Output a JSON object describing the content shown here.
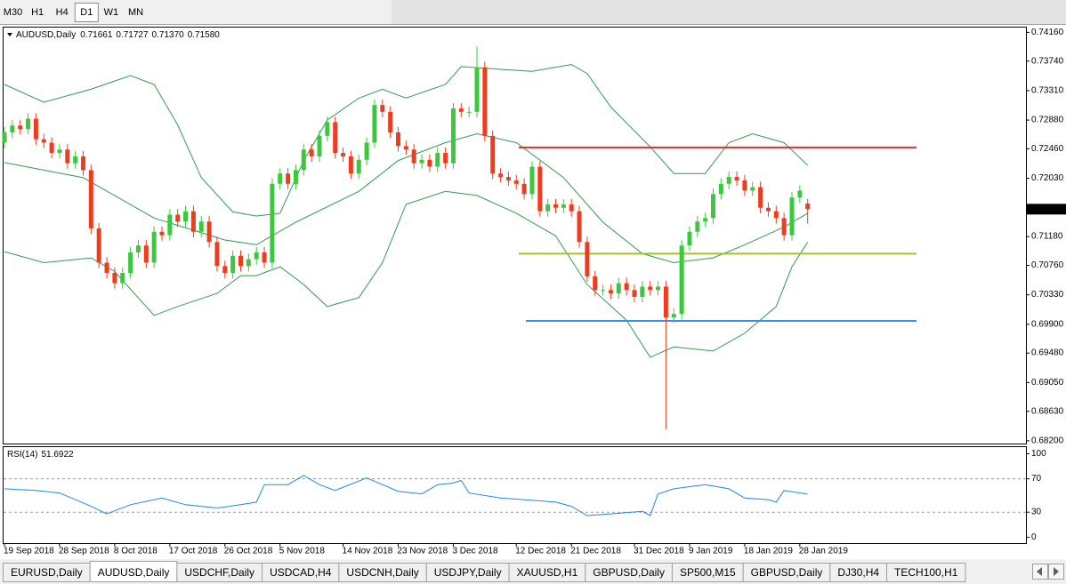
{
  "toolbar": {
    "timeframes": [
      "M30",
      "H1",
      "H4",
      "D1",
      "W1",
      "MN"
    ],
    "active": 3
  },
  "chart_data": [
    {
      "type": "candlestick",
      "title": "AUDUSD,Daily",
      "last_bar_labels": {
        "open": "0.71661",
        "high": "0.71727",
        "low": "0.71370",
        "close": "0.71580"
      },
      "categories": [
        "19 Sep 2018",
        null,
        null,
        null,
        null,
        null,
        null,
        "28 Sep 2018",
        null,
        null,
        null,
        null,
        null,
        null,
        "8 Oct 2018",
        null,
        null,
        null,
        null,
        null,
        null,
        "17 Oct 2018",
        null,
        null,
        null,
        null,
        null,
        null,
        "26 Oct 2018",
        null,
        null,
        null,
        null,
        null,
        null,
        "5 Nov 2018",
        null,
        null,
        null,
        null,
        null,
        null,
        null,
        "14 Nov 2018",
        null,
        null,
        null,
        null,
        null,
        null,
        "23 Nov 2018",
        null,
        null,
        null,
        null,
        null,
        null,
        "3 Dec 2018",
        null,
        null,
        null,
        null,
        null,
        null,
        null,
        "12 Dec 2018",
        null,
        null,
        null,
        null,
        null,
        null,
        "21 Dec 2018",
        null,
        null,
        null,
        null,
        null,
        null,
        null,
        "31 Dec 2018",
        null,
        null,
        null,
        null,
        null,
        null,
        "9 Jan 2019",
        null,
        null,
        null,
        null,
        null,
        null,
        "18 Jan 2019",
        null,
        null,
        null,
        null,
        null,
        null,
        "28 Jan 2019",
        null
      ],
      "open": [
        0.7255,
        0.727,
        0.728,
        0.7275,
        0.729,
        0.726,
        0.7255,
        0.724,
        0.7245,
        0.7225,
        0.7235,
        0.7215,
        0.713,
        0.708,
        0.7065,
        0.705,
        0.7065,
        0.7095,
        0.7105,
        0.708,
        0.7125,
        0.712,
        0.715,
        0.714,
        0.7155,
        0.7125,
        0.714,
        0.711,
        0.7075,
        0.7065,
        0.709,
        0.7075,
        0.7085,
        0.7095,
        0.708,
        0.7195,
        0.721,
        0.7195,
        0.7215,
        0.7245,
        0.7235,
        0.7265,
        0.7285,
        0.724,
        0.7235,
        0.721,
        0.723,
        0.7255,
        0.731,
        0.73,
        0.727,
        0.725,
        0.7245,
        0.7225,
        0.723,
        0.722,
        0.724,
        0.7225,
        0.7305,
        0.73,
        0.73,
        0.7365,
        0.7265,
        0.721,
        0.7205,
        0.72,
        0.7195,
        0.718,
        0.722,
        0.7155,
        0.7165,
        0.716,
        0.7165,
        0.7155,
        0.711,
        0.706,
        0.704,
        0.704,
        0.7035,
        0.705,
        0.704,
        0.703,
        0.7045,
        0.704,
        0.7045,
        0.7,
        0.7005,
        0.7105,
        0.7125,
        0.714,
        0.7145,
        0.718,
        0.7195,
        0.7205,
        0.72,
        0.7185,
        0.719,
        0.716,
        0.7155,
        0.7145,
        0.712,
        0.7175,
        0.71661
      ],
      "high": [
        0.7278,
        0.7288,
        0.7288,
        0.7298,
        0.7298,
        0.7268,
        0.7263,
        0.7253,
        0.7253,
        0.7243,
        0.7243,
        0.7223,
        0.7138,
        0.7088,
        0.7073,
        0.7073,
        0.7103,
        0.7113,
        0.7113,
        0.7133,
        0.7133,
        0.7158,
        0.7158,
        0.7163,
        0.7163,
        0.7148,
        0.7148,
        0.7118,
        0.7083,
        0.7098,
        0.7098,
        0.7093,
        0.7103,
        0.7103,
        0.7203,
        0.7218,
        0.7218,
        0.7223,
        0.7253,
        0.7253,
        0.7273,
        0.7293,
        0.7293,
        0.7248,
        0.7243,
        0.7238,
        0.7263,
        0.7318,
        0.7318,
        0.7308,
        0.7278,
        0.7258,
        0.7253,
        0.7238,
        0.7238,
        0.7248,
        0.7248,
        0.7313,
        0.7313,
        0.7308,
        0.7395,
        0.7373,
        0.7273,
        0.7218,
        0.7213,
        0.7208,
        0.7203,
        0.7228,
        0.7228,
        0.7173,
        0.7173,
        0.7173,
        0.7173,
        0.7163,
        0.7118,
        0.7068,
        0.7048,
        0.7048,
        0.7058,
        0.7058,
        0.7048,
        0.7053,
        0.7053,
        0.7053,
        0.7053,
        0.7013,
        0.7113,
        0.7133,
        0.7148,
        0.7153,
        0.7188,
        0.7203,
        0.7213,
        0.7213,
        0.7208,
        0.7198,
        0.7198,
        0.7168,
        0.7163,
        0.7153,
        0.7183,
        0.7193,
        0.71727
      ],
      "low": [
        0.7247,
        0.7262,
        0.7267,
        0.7267,
        0.7252,
        0.7247,
        0.7232,
        0.7232,
        0.7217,
        0.7217,
        0.7207,
        0.7122,
        0.7072,
        0.7057,
        0.7042,
        0.7042,
        0.7057,
        0.7087,
        0.7072,
        0.7072,
        0.7112,
        0.7112,
        0.7132,
        0.7132,
        0.7117,
        0.7117,
        0.7102,
        0.7067,
        0.7057,
        0.7057,
        0.7067,
        0.7067,
        0.7077,
        0.7072,
        0.7072,
        0.7187,
        0.7187,
        0.7187,
        0.7207,
        0.7227,
        0.7227,
        0.7257,
        0.7232,
        0.7227,
        0.7202,
        0.7202,
        0.7222,
        0.7247,
        0.7292,
        0.7262,
        0.7242,
        0.7237,
        0.7217,
        0.7217,
        0.7212,
        0.7212,
        0.7217,
        0.7217,
        0.7292,
        0.7292,
        0.7292,
        0.7257,
        0.7202,
        0.7197,
        0.7192,
        0.7187,
        0.7172,
        0.7172,
        0.7147,
        0.7147,
        0.7152,
        0.7152,
        0.7147,
        0.7102,
        0.7052,
        0.7032,
        0.7032,
        0.7027,
        0.7027,
        0.7032,
        0.7022,
        0.7022,
        0.7032,
        0.7032,
        0.6837,
        0.6992,
        0.6997,
        0.7097,
        0.7117,
        0.7132,
        0.7137,
        0.7172,
        0.7187,
        0.7192,
        0.7177,
        0.7177,
        0.7152,
        0.7147,
        0.7137,
        0.7112,
        0.7112,
        0.7167,
        0.7137
      ],
      "close": [
        0.727,
        0.728,
        0.7275,
        0.729,
        0.726,
        0.7255,
        0.724,
        0.7245,
        0.7225,
        0.7235,
        0.7215,
        0.713,
        0.708,
        0.7065,
        0.705,
        0.7065,
        0.7095,
        0.7105,
        0.708,
        0.7125,
        0.712,
        0.715,
        0.714,
        0.7155,
        0.7125,
        0.714,
        0.711,
        0.7075,
        0.7065,
        0.709,
        0.7075,
        0.7085,
        0.7095,
        0.708,
        0.7195,
        0.721,
        0.7195,
        0.7215,
        0.7245,
        0.7235,
        0.7265,
        0.7285,
        0.724,
        0.7235,
        0.721,
        0.723,
        0.7255,
        0.731,
        0.73,
        0.727,
        0.725,
        0.7245,
        0.7225,
        0.723,
        0.722,
        0.724,
        0.7225,
        0.7305,
        0.73,
        0.73,
        0.7365,
        0.7265,
        0.721,
        0.7205,
        0.72,
        0.7195,
        0.718,
        0.722,
        0.7155,
        0.7165,
        0.716,
        0.7165,
        0.7155,
        0.711,
        0.706,
        0.704,
        0.704,
        0.7035,
        0.705,
        0.704,
        0.703,
        0.7045,
        0.704,
        0.7045,
        0.7,
        0.7005,
        0.7105,
        0.7125,
        0.714,
        0.7145,
        0.718,
        0.7195,
        0.7205,
        0.72,
        0.7185,
        0.719,
        0.716,
        0.7155,
        0.7145,
        0.712,
        0.7175,
        0.7185,
        0.7158
      ],
      "up_color": "#3cc83c",
      "down_color": "#f03c1e",
      "bands": [
        {
          "color": "#2e9e4e",
          "x": [
            0,
            5,
            11,
            16,
            19,
            22,
            25,
            29,
            32,
            35,
            38,
            41,
            45,
            48,
            51,
            56,
            58,
            63,
            67,
            72,
            74,
            77,
            82,
            85,
            89,
            92,
            95,
            99,
            102
          ],
          "values": [
            0.734,
            0.7314,
            0.7333,
            0.7353,
            0.734,
            0.7281,
            0.7204,
            0.7154,
            0.7148,
            0.7152,
            0.7229,
            0.7288,
            0.732,
            0.7333,
            0.732,
            0.734,
            0.7366,
            0.7362,
            0.7359,
            0.7369,
            0.7356,
            0.7307,
            0.7249,
            0.721,
            0.721,
            0.7255,
            0.7268,
            0.7255,
            0.7222
          ]
        },
        {
          "color": "#2e9e4e",
          "x": [
            0,
            10,
            19,
            28,
            32,
            37,
            45,
            50,
            56,
            60,
            65,
            71,
            76,
            81,
            85,
            90,
            94,
            99,
            102
          ],
          "values": [
            0.7226,
            0.7204,
            0.7145,
            0.7113,
            0.7106,
            0.7139,
            0.7184,
            0.7229,
            0.7255,
            0.7268,
            0.7255,
            0.7204,
            0.7139,
            0.7093,
            0.708,
            0.7087,
            0.7106,
            0.7132,
            0.7152
          ]
        },
        {
          "color": "#2e9e4e",
          "x": [
            0,
            5,
            11,
            14,
            19,
            22,
            27,
            30,
            32,
            35,
            38,
            41,
            45,
            48,
            51,
            56,
            60,
            65,
            70,
            74,
            79,
            82,
            85,
            90,
            94,
            98,
            100,
            102
          ],
          "values": [
            0.7096,
            0.708,
            0.7087,
            0.7067,
            0.7003,
            0.7016,
            0.7035,
            0.7061,
            0.7061,
            0.7074,
            0.7048,
            0.7016,
            0.7029,
            0.708,
            0.7165,
            0.7184,
            0.7178,
            0.7152,
            0.7119,
            0.7048,
            0.6996,
            0.6942,
            0.6957,
            0.6951,
            0.6977,
            0.7016,
            0.7074,
            0.711
          ]
        }
      ],
      "hlines": [
        {
          "value": 0.7248,
          "color": "#e03030"
        },
        {
          "value": 0.7093,
          "color": "#a8c020"
        },
        {
          "value": 0.6995,
          "color": "#3a8ee6"
        }
      ],
      "ylim": [
        0.6816,
        0.7423
      ],
      "yticks": [
        {
          "value": 0.7416,
          "label": "0.74160"
        },
        {
          "value": 0.7374,
          "label": "0.73740"
        },
        {
          "value": 0.7331,
          "label": "0.73310"
        },
        {
          "value": 0.7288,
          "label": "0.72880"
        },
        {
          "value": 0.7246,
          "label": "0.72460"
        },
        {
          "value": 0.7203,
          "label": "0.72030"
        },
        {
          "value": 0.7118,
          "label": "0.71180"
        },
        {
          "value": 0.7076,
          "label": "0.70760"
        },
        {
          "value": 0.7033,
          "label": "0.70330"
        },
        {
          "value": 0.699,
          "label": "0.69900"
        },
        {
          "value": 0.6948,
          "label": "0.69480"
        },
        {
          "value": 0.6905,
          "label": "0.69050"
        },
        {
          "value": 0.6863,
          "label": "0.68630"
        },
        {
          "value": 0.682,
          "label": "0.68200"
        }
      ]
    },
    {
      "type": "line",
      "title": "RSI(14)",
      "color": "#1e88e5",
      "x": [
        0,
        4,
        7,
        11,
        13,
        16,
        20,
        23,
        27,
        30,
        32,
        33,
        36,
        38,
        40,
        42,
        46,
        48,
        50,
        53,
        55,
        57,
        58,
        59,
        63,
        66,
        70,
        72,
        74,
        77,
        81,
        82,
        83,
        85,
        89,
        92,
        94,
        97,
        98,
        99,
        102
      ],
      "values": [
        58,
        56,
        53,
        37,
        28,
        39,
        47,
        39,
        35,
        39,
        42,
        63,
        63,
        74,
        63,
        56,
        71,
        63,
        55,
        52,
        63,
        65,
        68,
        53,
        47,
        45,
        42,
        37,
        26,
        28,
        31,
        26,
        52,
        58,
        63,
        58,
        47,
        45,
        42,
        56,
        51.6922
      ],
      "ylim": [
        -6,
        108
      ],
      "yticks": [
        100,
        70,
        30,
        0
      ],
      "levels": [
        70,
        30
      ]
    }
  ],
  "tabs": {
    "items": [
      "EURUSD,Daily",
      "AUDUSD,Daily",
      "USDCHF,Daily",
      "USDCAD,H4",
      "USDCNH,Daily",
      "USDJPY,Daily",
      "XAUUSD,H1",
      "GBPUSD,Daily",
      "SP500,M15",
      "GBPUSD,Daily",
      "DJ30,H4",
      "TECH100,H1"
    ],
    "active": 1
  }
}
